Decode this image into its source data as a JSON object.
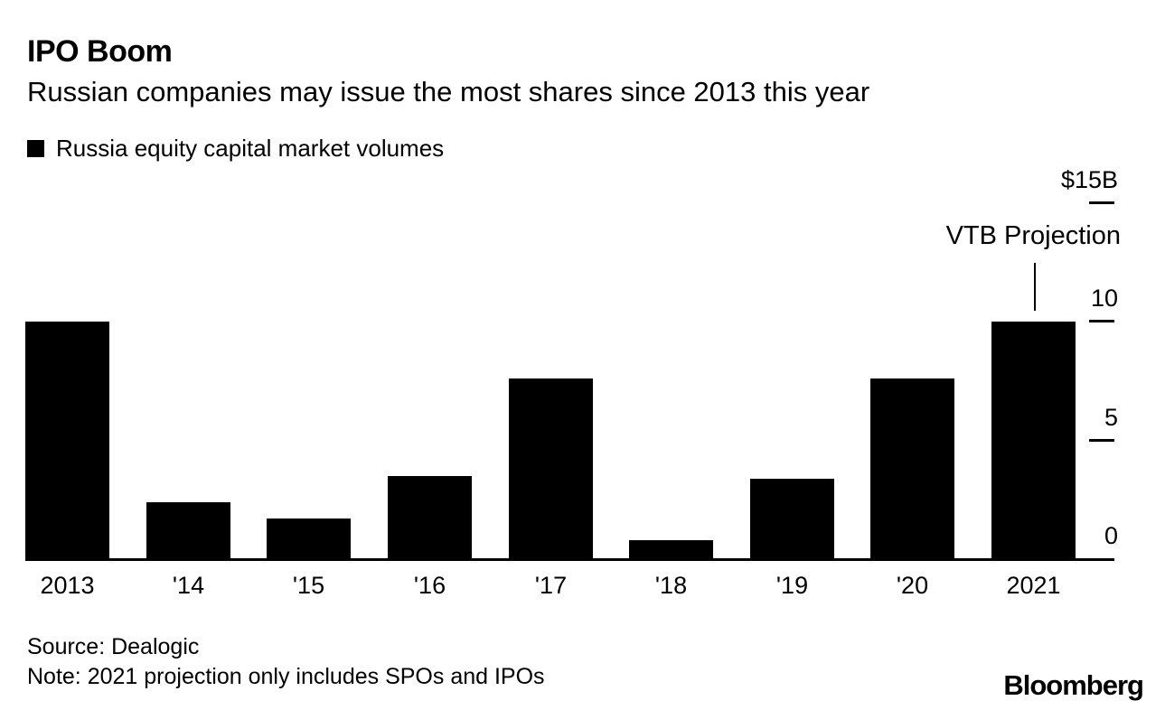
{
  "header": {
    "title": "IPO Boom",
    "subtitle": "Russian companies may issue the most shares since 2013 this year"
  },
  "legend": {
    "label": "Russia equity capital market volumes",
    "swatch_color": "#000000"
  },
  "chart_data": {
    "type": "bar",
    "title": "IPO Boom",
    "subtitle": "Russian companies may issue the most shares since 2013 this year",
    "series_name": "Russia equity capital market volumes",
    "categories": [
      "2013",
      "'14",
      "'15",
      "'16",
      "'17",
      "'18",
      "'19",
      "'20",
      "2021"
    ],
    "values": [
      10.0,
      2.4,
      1.7,
      3.5,
      7.6,
      0.8,
      3.4,
      7.6,
      10.0
    ],
    "unit": "billion USD",
    "xlabel": "",
    "ylabel": "",
    "ylim": [
      0,
      15
    ],
    "yticks": [
      {
        "value": 0,
        "label": "0"
      },
      {
        "value": 5,
        "label": "5"
      },
      {
        "value": 10,
        "label": "10"
      },
      {
        "value": 15,
        "label": "$15B"
      }
    ],
    "bar_color": "#000000",
    "grid": false,
    "legend_position": "top-left",
    "y_axis_side": "right",
    "annotation": {
      "text": "VTB Projection",
      "target_category": "2021"
    }
  },
  "footer": {
    "source": "Source: Dealogic",
    "note": "Note: 2021 projection only includes SPOs and IPOs",
    "brand": "Bloomberg"
  }
}
